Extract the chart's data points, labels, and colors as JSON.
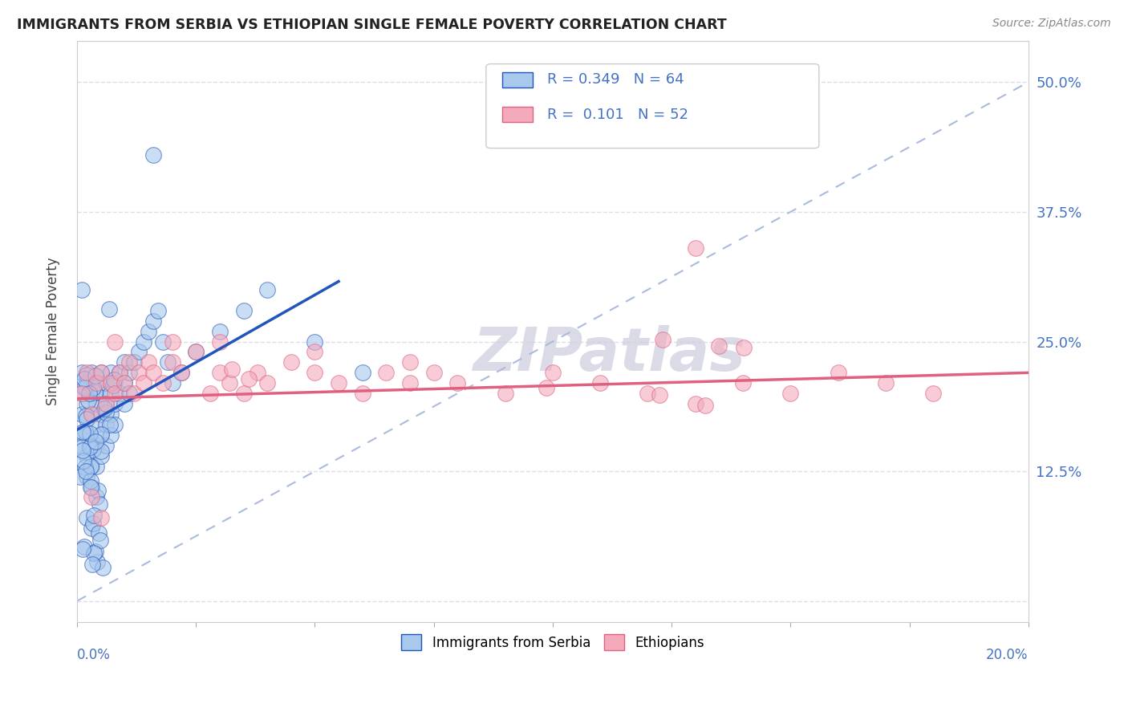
{
  "title": "IMMIGRANTS FROM SERBIA VS ETHIOPIAN SINGLE FEMALE POVERTY CORRELATION CHART",
  "source": "Source: ZipAtlas.com",
  "ylabel": "Single Female Poverty",
  "y_tick_labels": [
    "",
    "12.5%",
    "25.0%",
    "37.5%",
    "50.0%"
  ],
  "y_tick_vals": [
    0.0,
    0.125,
    0.25,
    0.375,
    0.5
  ],
  "xlim": [
    0.0,
    0.2
  ],
  "ylim": [
    -0.02,
    0.54
  ],
  "legend_labels": [
    "Immigrants from Serbia",
    "Ethiopians"
  ],
  "R_serbia": 0.349,
  "N_serbia": 64,
  "R_ethiopian": 0.101,
  "N_ethiopian": 52,
  "color_serbia": "#A8C8EC",
  "color_ethiopian": "#F4AABB",
  "trendline_serbia": "#2255BB",
  "trendline_ethiopian": "#E06080",
  "watermark": "ZIPatlas",
  "grid_color": "#DDDDEE",
  "serbia_x": [
    0.001,
    0.001,
    0.001,
    0.001,
    0.002,
    0.002,
    0.002,
    0.002,
    0.002,
    0.003,
    0.003,
    0.003,
    0.003,
    0.003,
    0.003,
    0.004,
    0.004,
    0.004,
    0.004,
    0.004,
    0.004,
    0.005,
    0.005,
    0.005,
    0.005,
    0.005,
    0.006,
    0.006,
    0.006,
    0.006,
    0.007,
    0.007,
    0.007,
    0.007,
    0.008,
    0.008,
    0.008,
    0.009,
    0.009,
    0.01,
    0.01,
    0.01,
    0.011,
    0.011,
    0.012,
    0.013,
    0.014,
    0.015,
    0.016,
    0.017,
    0.018,
    0.019,
    0.02,
    0.022,
    0.025,
    0.03,
    0.035,
    0.04,
    0.05,
    0.06,
    0.001,
    0.002,
    0.003,
    0.016
  ],
  "serbia_y": [
    0.2,
    0.22,
    0.18,
    0.15,
    0.21,
    0.19,
    0.16,
    0.14,
    0.12,
    0.2,
    0.22,
    0.18,
    0.15,
    0.13,
    0.11,
    0.21,
    0.19,
    0.17,
    0.15,
    0.13,
    0.1,
    0.22,
    0.2,
    0.18,
    0.16,
    0.14,
    0.21,
    0.19,
    0.17,
    0.15,
    0.22,
    0.2,
    0.18,
    0.16,
    0.21,
    0.19,
    0.17,
    0.22,
    0.2,
    0.23,
    0.21,
    0.19,
    0.22,
    0.2,
    0.23,
    0.24,
    0.25,
    0.26,
    0.27,
    0.28,
    0.25,
    0.23,
    0.21,
    0.22,
    0.24,
    0.26,
    0.28,
    0.3,
    0.25,
    0.22,
    0.3,
    0.08,
    0.07,
    0.43
  ],
  "ethiopian_x": [
    0.001,
    0.002,
    0.003,
    0.004,
    0.005,
    0.006,
    0.007,
    0.008,
    0.009,
    0.01,
    0.011,
    0.012,
    0.013,
    0.014,
    0.015,
    0.016,
    0.018,
    0.02,
    0.022,
    0.025,
    0.028,
    0.03,
    0.032,
    0.035,
    0.038,
    0.04,
    0.045,
    0.05,
    0.055,
    0.06,
    0.065,
    0.07,
    0.075,
    0.08,
    0.09,
    0.1,
    0.11,
    0.12,
    0.13,
    0.14,
    0.15,
    0.16,
    0.17,
    0.18,
    0.008,
    0.02,
    0.03,
    0.05,
    0.07,
    0.13,
    0.003,
    0.005
  ],
  "ethiopian_y": [
    0.2,
    0.22,
    0.18,
    0.21,
    0.22,
    0.19,
    0.21,
    0.2,
    0.22,
    0.21,
    0.23,
    0.2,
    0.22,
    0.21,
    0.23,
    0.22,
    0.21,
    0.23,
    0.22,
    0.24,
    0.2,
    0.22,
    0.21,
    0.2,
    0.22,
    0.21,
    0.23,
    0.22,
    0.21,
    0.2,
    0.22,
    0.21,
    0.22,
    0.21,
    0.2,
    0.22,
    0.21,
    0.2,
    0.19,
    0.21,
    0.2,
    0.22,
    0.21,
    0.2,
    0.25,
    0.25,
    0.25,
    0.24,
    0.23,
    0.34,
    0.1,
    0.08
  ]
}
